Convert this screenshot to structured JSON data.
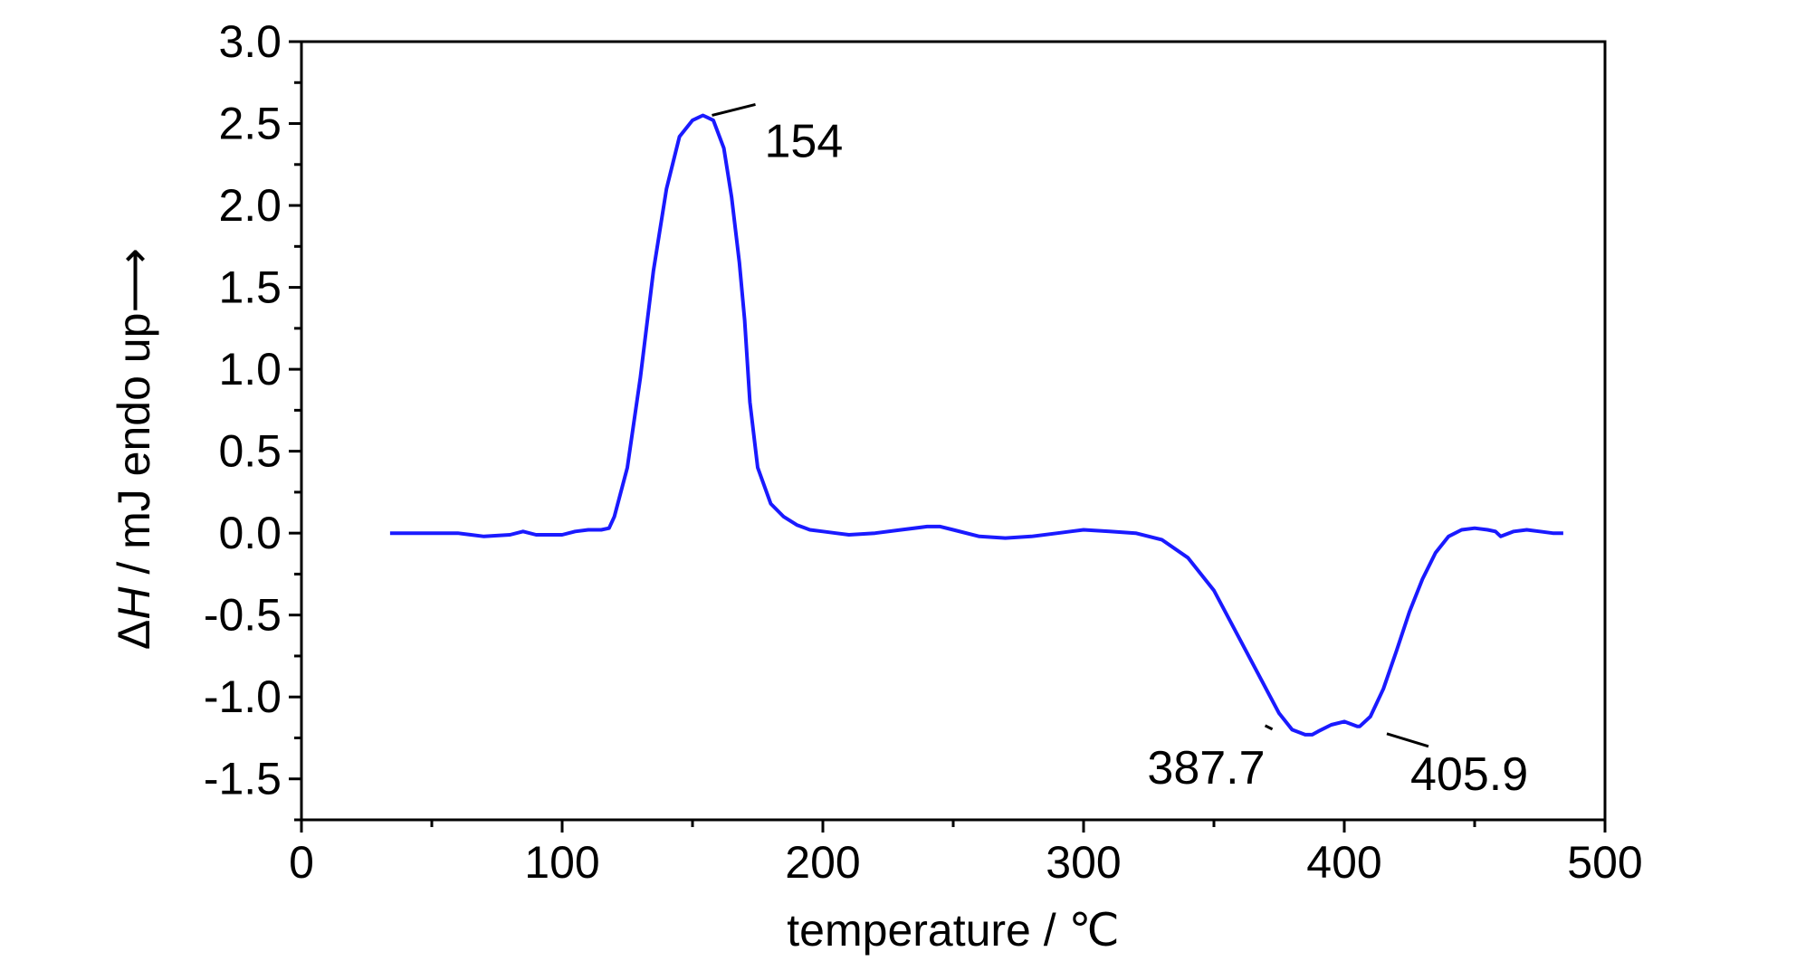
{
  "chart_data": {
    "type": "line",
    "xlabel": "temperature / ℃",
    "ylabel_parts": [
      "Δ",
      "H",
      " / mJ  endo up⟶"
    ],
    "xlim": [
      0,
      500
    ],
    "ylim": [
      -1.75,
      3.0
    ],
    "xticks": [
      0,
      100,
      200,
      300,
      400,
      500
    ],
    "xtick_labels": [
      "0",
      "100",
      "200",
      "300",
      "400",
      "500"
    ],
    "yticks": [
      -1.5,
      -1.0,
      -0.5,
      0.0,
      0.5,
      1.0,
      1.5,
      2.0,
      2.5,
      3.0
    ],
    "ytick_labels": [
      "-1.5",
      "-1.0",
      "-0.5",
      "0.0",
      "0.5",
      "1.0",
      "1.5",
      "2.0",
      "2.5",
      "3.0"
    ],
    "grid": false,
    "line_color": "#1a1aff",
    "series": [
      {
        "x": [
          34,
          40,
          50,
          60,
          65,
          70,
          80,
          85,
          90,
          100,
          105,
          110,
          115,
          118,
          120,
          125,
          130,
          135,
          140,
          145,
          150,
          154,
          158,
          162,
          165,
          168,
          170,
          172,
          175,
          180,
          185,
          190,
          195,
          200,
          205,
          210,
          220,
          230,
          240,
          245,
          250,
          260,
          270,
          280,
          290,
          295,
          300,
          310,
          320,
          330,
          340,
          350,
          360,
          370,
          375,
          380,
          385,
          387.7,
          390,
          395,
          400,
          405,
          405.9,
          410,
          415,
          420,
          425,
          430,
          435,
          440,
          445,
          450,
          455,
          458,
          460,
          465,
          470,
          475,
          480,
          484
        ],
        "y": [
          0.0,
          0.0,
          0.0,
          0.0,
          -0.01,
          -0.02,
          -0.01,
          0.01,
          -0.01,
          -0.01,
          0.01,
          0.02,
          0.02,
          0.03,
          0.1,
          0.4,
          0.95,
          1.6,
          2.1,
          2.42,
          2.52,
          2.55,
          2.52,
          2.35,
          2.05,
          1.65,
          1.3,
          0.8,
          0.4,
          0.18,
          0.1,
          0.05,
          0.02,
          0.01,
          0.0,
          -0.01,
          0.0,
          0.02,
          0.04,
          0.04,
          0.02,
          -0.02,
          -0.03,
          -0.02,
          0.0,
          0.01,
          0.02,
          0.01,
          0.0,
          -0.04,
          -0.15,
          -0.35,
          -0.65,
          -0.95,
          -1.1,
          -1.2,
          -1.23,
          -1.23,
          -1.21,
          -1.17,
          -1.15,
          -1.18,
          -1.18,
          -1.12,
          -0.95,
          -0.72,
          -0.48,
          -0.28,
          -0.12,
          -0.02,
          0.02,
          0.03,
          0.02,
          0.01,
          -0.02,
          0.01,
          0.02,
          0.01,
          0.0,
          0.0
        ]
      }
    ],
    "annotations": [
      {
        "text": "154",
        "x": 154,
        "y": 2.55
      },
      {
        "text": "387.7",
        "x": 387.7,
        "y": -1.23
      },
      {
        "text": "405.9",
        "x": 405.9,
        "y": -1.18
      }
    ]
  }
}
